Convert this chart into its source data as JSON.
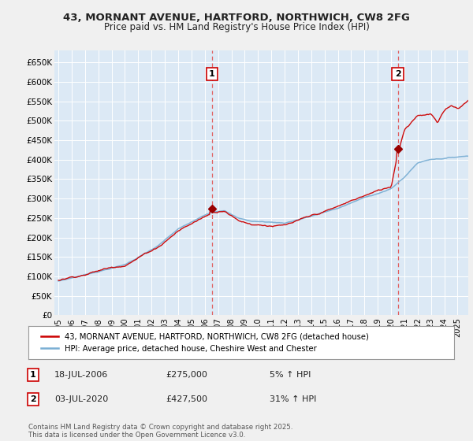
{
  "title": "43, MORNANT AVENUE, HARTFORD, NORTHWICH, CW8 2FG",
  "subtitle": "Price paid vs. HM Land Registry's House Price Index (HPI)",
  "background_color": "#f0f0f0",
  "plot_bg_color": "#dce9f5",
  "ylim": [
    0,
    680000
  ],
  "yticks": [
    0,
    50000,
    100000,
    150000,
    200000,
    250000,
    300000,
    350000,
    400000,
    450000,
    500000,
    550000,
    600000,
    650000
  ],
  "ytick_labels": [
    "£0",
    "£50K",
    "£100K",
    "£150K",
    "£200K",
    "£250K",
    "£300K",
    "£350K",
    "£400K",
    "£450K",
    "£500K",
    "£550K",
    "£600K",
    "£650K"
  ],
  "xmin_year": 1995,
  "xmax_year": 2025,
  "xticks": [
    1995,
    1996,
    1997,
    1998,
    1999,
    2000,
    2001,
    2002,
    2003,
    2004,
    2005,
    2006,
    2007,
    2008,
    2009,
    2010,
    2011,
    2012,
    2013,
    2014,
    2015,
    2016,
    2017,
    2018,
    2019,
    2020,
    2021,
    2022,
    2023,
    2024,
    2025
  ],
  "sale1_year": 2006.54,
  "sale1_price": 275000,
  "sale1_label": "1",
  "sale2_year": 2020.5,
  "sale2_price": 427500,
  "sale2_label": "2",
  "red_line_color": "#cc0000",
  "blue_line_color": "#7bafd4",
  "sale_marker_color": "#990000",
  "vline_color": "#e06060",
  "legend_label_red": "43, MORNANT AVENUE, HARTFORD, NORTHWICH, CW8 2FG (detached house)",
  "legend_label_blue": "HPI: Average price, detached house, Cheshire West and Chester",
  "annotation1_date": "18-JUL-2006",
  "annotation1_price": "£275,000",
  "annotation1_hpi": "5% ↑ HPI",
  "annotation2_date": "03-JUL-2020",
  "annotation2_price": "£427,500",
  "annotation2_hpi": "31% ↑ HPI",
  "footer": "Contains HM Land Registry data © Crown copyright and database right 2025.\nThis data is licensed under the Open Government Licence v3.0."
}
